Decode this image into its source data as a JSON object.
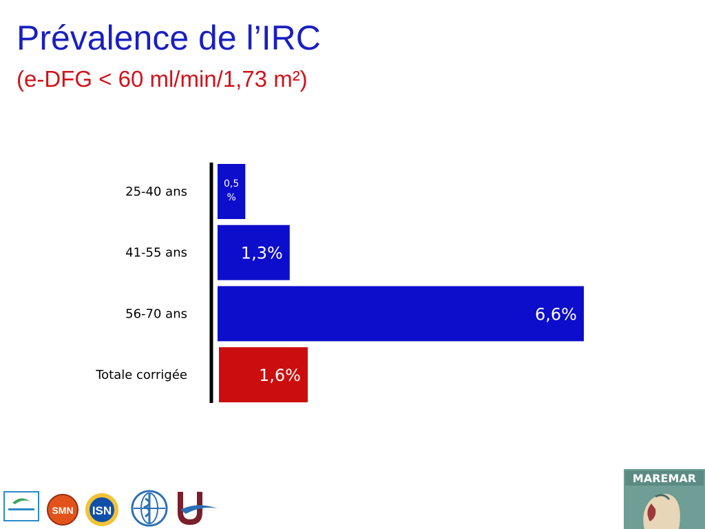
{
  "slide": {
    "title": "Prévalence de l’IRC",
    "subtitle": "(e-DFG < 60 ml/min/1,73 m²)"
  },
  "chart_data": {
    "type": "bar",
    "orientation": "horizontal",
    "categories": [
      "25-40 ans",
      "41-55 ans",
      "56-70 ans",
      "Totale corrigée"
    ],
    "values": [
      0.5,
      1.3,
      6.6,
      1.6
    ],
    "data_labels": [
      "0,5\n%",
      "1,3%",
      "6,6%",
      "1,6%"
    ],
    "bar_colors": [
      "#0d0dcc",
      "#0d0dcc",
      "#0d0dcc",
      "#cc0d0d"
    ],
    "unit": "%",
    "xlim": [
      0,
      6.6
    ],
    "grid": false,
    "legend": "none"
  },
  "logos": {
    "items": [
      "smm-logo",
      "smn-logo",
      "isn-logo",
      "who-logo",
      "university-logo"
    ],
    "maremar_label": "MAREMAR",
    "colors": {
      "smn": "#e2531c",
      "isn": "#0f4fa8",
      "who": "#2c6fb5",
      "univ": "#7a1f2b",
      "maremar_bg": "#6e9e95"
    }
  }
}
